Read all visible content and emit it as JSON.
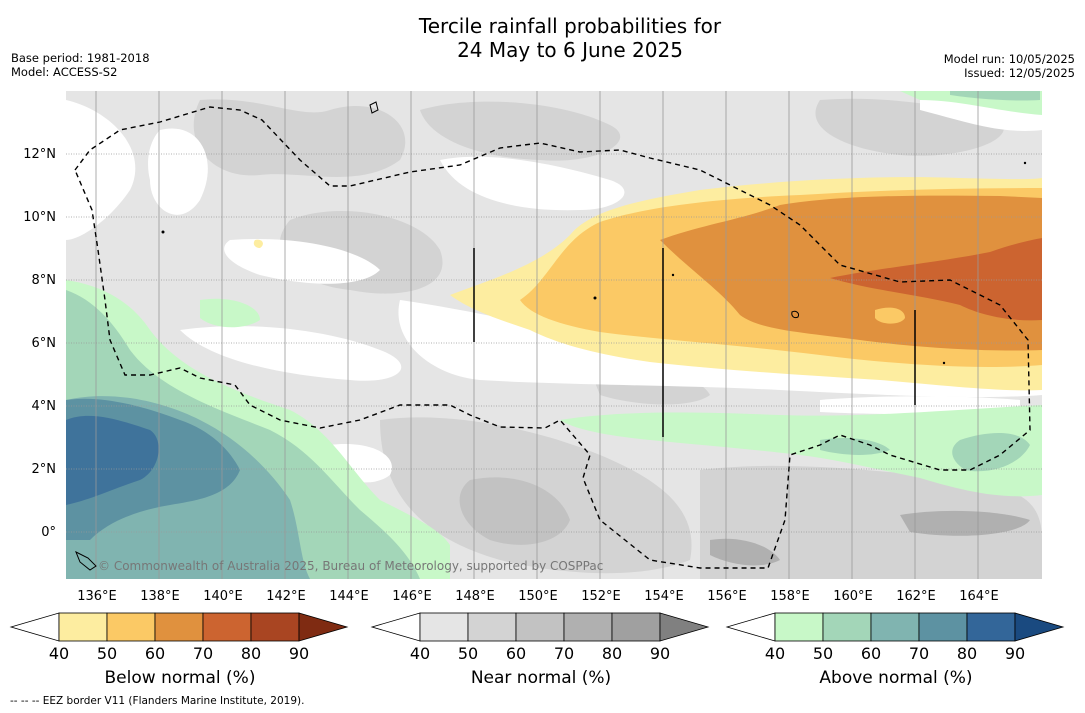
{
  "title_line1": "Tercile rainfall probabilities for",
  "title_line2": "24 May to 6 June 2025",
  "base_period": "Base period: 1981-2018",
  "model": "Model: ACCESS-S2",
  "model_run": "Model run: 10/05/2025",
  "issued": "Issued: 12/05/2025",
  "copyright": "© Commonwealth of Australia 2025, Bureau of Meteorology, supported by COSPPac",
  "lat_labels": [
    "12°N",
    "10°N",
    "8°N",
    "6°N",
    "4°N",
    "2°N",
    "0°"
  ],
  "lon_labels": [
    "136°E",
    "138°E",
    "140°E",
    "142°E",
    "144°E",
    "146°E",
    "148°E",
    "150°E",
    "152°E",
    "154°E",
    "156°E",
    "158°E",
    "160°E",
    "162°E",
    "164°E"
  ],
  "colorbars": [
    {
      "label": "Below normal (%)",
      "ticks": [
        "40",
        "50",
        "60",
        "70",
        "80",
        "90"
      ],
      "colors": [
        "#ffffff",
        "#fdeda0",
        "#fbc965",
        "#e0913e",
        "#cc6430",
        "#a94522",
        "#7f2b12"
      ]
    },
    {
      "label": "Near normal (%)",
      "ticks": [
        "40",
        "50",
        "60",
        "70",
        "80",
        "90"
      ],
      "colors": [
        "#ffffff",
        "#e5e5e5",
        "#d3d3d3",
        "#c2c2c2",
        "#b0b0b0",
        "#a0a0a0",
        "#808080"
      ]
    },
    {
      "label": "Above normal (%)",
      "ticks": [
        "40",
        "50",
        "60",
        "70",
        "80",
        "90"
      ],
      "colors": [
        "#ffffff",
        "#c8f8c8",
        "#a3d6b8",
        "#80b4b0",
        "#5d92a2",
        "#336699",
        "#1a4a80"
      ]
    }
  ],
  "footnote": "--  --  -- EEZ border V11 (Flanders Marine Institute, 2019)."
}
